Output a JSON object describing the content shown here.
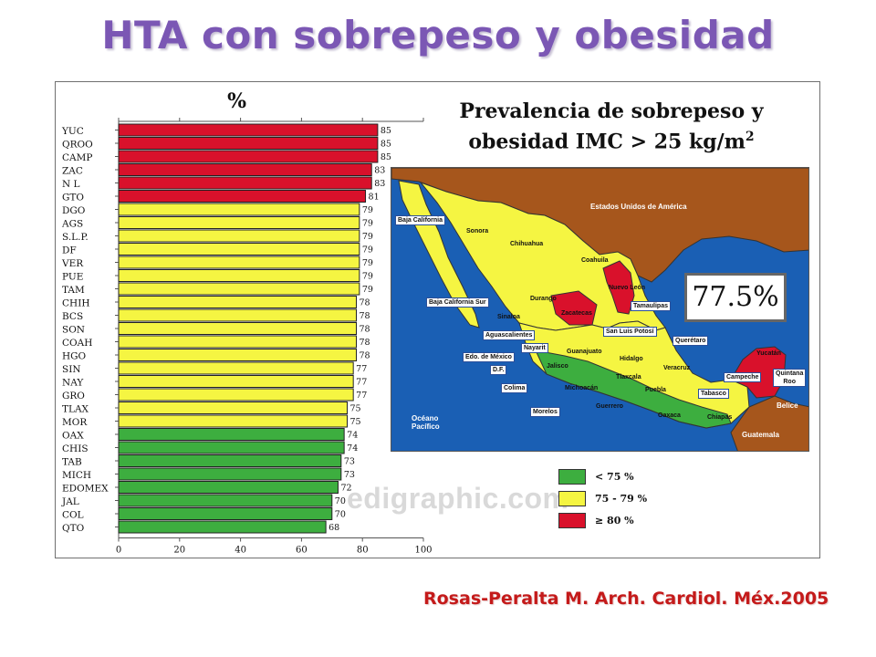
{
  "slide": {
    "title": "HTA con sobrepeso y obesidad",
    "citation": "Rosas-Peralta M. Arch. Cardiol. Méx.2005",
    "watermark": "edigraphic.com"
  },
  "map": {
    "title_line1": "Prevalencia de sobrepeso y",
    "title_line2": "obesidad IMC > 25 kg/m",
    "title_sup": "2",
    "national_value": "77.5%",
    "labels": {
      "usa": "Estados Unidos de América",
      "baja_california": "Baja California",
      "sonora": "Sonora",
      "chihuahua": "Chihuahua",
      "coahuila": "Coahuila",
      "nuevo_leon": "Nuevo León",
      "tamaulipas": "Tamaulipas",
      "baja_california_sur": "Baja California Sur",
      "durango": "Durango",
      "sinaloa": "Sinaloa",
      "zacatecas": "Zacatecas",
      "san_luis_potosi": "San Luis Potosí",
      "aguascalientes": "Aguascalientes",
      "queretaro": "Querétaro",
      "nayarit": "Nayarit",
      "guanajuato": "Guanajuato",
      "edo_mexico": "Edo. de México",
      "hidalgo": "Hidalgo",
      "veracruz": "Veracruz",
      "df": "D.F.",
      "jalisco": "Jalisco",
      "tlaxcala": "Tlaxcala",
      "yucatan": "Yucatán",
      "campeche": "Campeche",
      "quintana_roo_1": "Quintana",
      "quintana_roo_2": "Roo",
      "colima": "Colima",
      "michoacan": "Michoacán",
      "puebla": "Puebla",
      "tabasco": "Tabasco",
      "belice": "Belice",
      "oceano_1": "Océano",
      "oceano_2": "Pacífico",
      "morelos": "Morelos",
      "guerrero": "Guerrero",
      "oaxaca": "Oaxaca",
      "chiapas": "Chiapas",
      "guatemala": "Guatemala"
    },
    "legend": [
      {
        "label": "< 75 %",
        "color": "#3dae3f"
      },
      {
        "label": "75 - 79 %",
        "color": "#f5f542"
      },
      {
        "label": "≥ 80 %",
        "color": "#d9112b"
      }
    ]
  },
  "chart_data": {
    "type": "bar",
    "orientation": "horizontal",
    "title": "",
    "xlabel": "%",
    "ylabel": "",
    "xlim": [
      0,
      100
    ],
    "xticks": [
      0,
      20,
      40,
      60,
      80,
      100
    ],
    "categories": [
      "YUC",
      "QROO",
      "CAMP",
      "ZAC",
      "N L",
      "GTO",
      "DGO",
      "AGS",
      "S.L.P.",
      "DF",
      "VER",
      "PUE",
      "TAM",
      "CHIH",
      "BCS",
      "SON",
      "COAH",
      "HGO",
      "SIN",
      "NAY",
      "GRO",
      "TLAX",
      "MOR",
      "OAX",
      "CHIS",
      "TAB",
      "MICH",
      "EDOMEX",
      "JAL",
      "COL",
      "QTO"
    ],
    "values": [
      85,
      85,
      85,
      83,
      83,
      81,
      79,
      79,
      79,
      79,
      79,
      79,
      79,
      78,
      78,
      78,
      78,
      78,
      77,
      77,
      77,
      75,
      75,
      74,
      74,
      73,
      73,
      72,
      70,
      70,
      68
    ],
    "colors": {
      "high": "#d9112b",
      "mid": "#f5f542",
      "low": "#3dae3f"
    },
    "thresholds": {
      "high": 80,
      "mid": 75
    },
    "grid": false
  }
}
